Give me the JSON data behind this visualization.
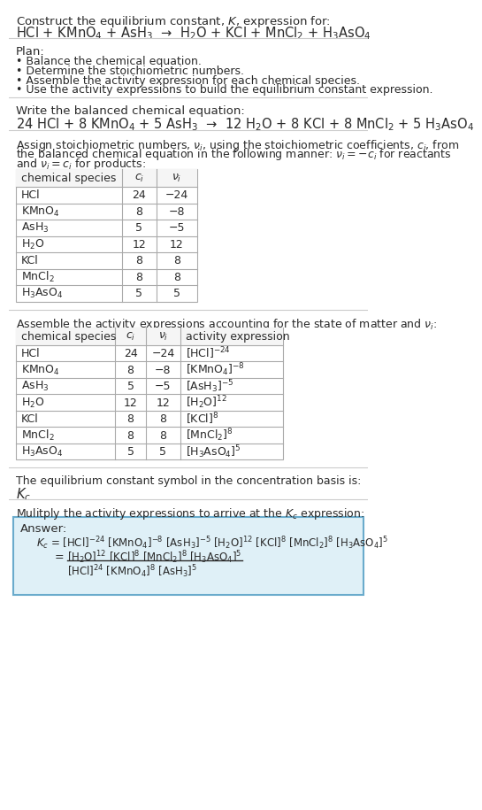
{
  "title_line1": "Construct the equilibrium constant, $K$, expression for:",
  "title_line2": "HCl + KMnO$_4$ + AsH$_3$  →  H$_2$O + KCl + MnCl$_2$ + H$_3$AsO$_4$",
  "plan_header": "Plan:",
  "plan_items": [
    "• Balance the chemical equation.",
    "• Determine the stoichiometric numbers.",
    "• Assemble the activity expression for each chemical species.",
    "• Use the activity expressions to build the equilibrium constant expression."
  ],
  "balanced_header": "Write the balanced chemical equation:",
  "balanced_eq": "24 HCl + 8 KMnO$_4$ + 5 AsH$_3$  →  12 H$_2$O + 8 KCl + 8 MnCl$_2$ + 5 H$_3$AsO$_4$",
  "stoich_intro_lines": [
    "Assign stoichiometric numbers, $\\nu_i$, using the stoichiometric coefficients, $c_i$, from",
    "the balanced chemical equation in the following manner: $\\nu_i = -c_i$ for reactants",
    "and $\\nu_i = c_i$ for products:"
  ],
  "table1_headers": [
    "chemical species",
    "$c_i$",
    "$\\nu_i$"
  ],
  "table1_data": [
    [
      "HCl",
      "24",
      "−24"
    ],
    [
      "KMnO$_4$",
      "8",
      "−8"
    ],
    [
      "AsH$_3$",
      "5",
      "−5"
    ],
    [
      "H$_2$O",
      "12",
      "12"
    ],
    [
      "KCl",
      "8",
      "8"
    ],
    [
      "MnCl$_2$",
      "8",
      "8"
    ],
    [
      "H$_3$AsO$_4$",
      "5",
      "5"
    ]
  ],
  "activity_intro": "Assemble the activity expressions accounting for the state of matter and $\\nu_i$:",
  "table2_headers": [
    "chemical species",
    "$c_i$",
    "$\\nu_i$",
    "activity expression"
  ],
  "table2_data": [
    [
      "HCl",
      "24",
      "−24",
      "[HCl]$^{-24}$"
    ],
    [
      "KMnO$_4$",
      "8",
      "−8",
      "[KMnO$_4$]$^{-8}$"
    ],
    [
      "AsH$_3$",
      "5",
      "−5",
      "[AsH$_3$]$^{-5}$"
    ],
    [
      "H$_2$O",
      "12",
      "12",
      "[H$_2$O]$^{12}$"
    ],
    [
      "KCl",
      "8",
      "8",
      "[KCl]$^8$"
    ],
    [
      "MnCl$_2$",
      "8",
      "8",
      "[MnCl$_2$]$^8$"
    ],
    [
      "H$_3$AsO$_4$",
      "5",
      "5",
      "[H$_3$AsO$_4$]$^5$"
    ]
  ],
  "kc_intro": "The equilibrium constant symbol in the concentration basis is:",
  "kc_symbol": "$K_c$",
  "multiply_intro": "Mulitply the activity expressions to arrive at the $K_c$ expression:",
  "answer_label": "Answer:",
  "kc_line1": "$K_c$ = [HCl]$^{-24}$ [KMnO$_4$]$^{-8}$ [AsH$_3$]$^{-5}$ [H$_2$O]$^{12}$ [KCl]$^8$ [MnCl$_2$]$^8$ [H$_3$AsO$_4$]$^5$",
  "kc_eq_label": "=",
  "kc_line2_num": "[H$_2$O]$^{12}$ [KCl]$^8$ [MnCl$_2$]$^8$ [H$_3$AsO$_4$]$^5$",
  "kc_line2_den": "[HCl]$^{24}$ [KMnO$_4$]$^8$ [AsH$_3$]$^5$",
  "bg_color": "#ffffff",
  "text_color": "#2a2a2a",
  "table_border_color": "#aaaaaa",
  "answer_bg_color": "#dff0f7",
  "answer_border_color": "#6aabcc",
  "separator_color": "#cccccc",
  "header_bg_color": "#f5f5f5"
}
